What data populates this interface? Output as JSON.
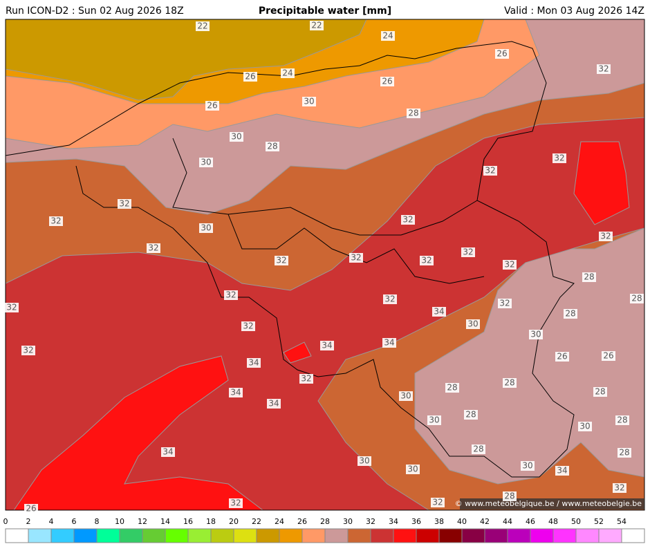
{
  "header": {
    "run": "Run ICON-D2 : Sun 02 Aug 2026 18Z",
    "title": "Precipitable water [mm]",
    "valid": "Valid : Mon 03 Aug 2026 14Z"
  },
  "copyright": "© www.meteobelgique.be / www.meteobelgie.be",
  "contour_labels": [
    22,
    22,
    24,
    26,
    32,
    26,
    24,
    26,
    30,
    26,
    28,
    30,
    28,
    30,
    32,
    32,
    32,
    32,
    30,
    32,
    32,
    32,
    32,
    32,
    32,
    32,
    32,
    28,
    32,
    32,
    32,
    28,
    32,
    34,
    28,
    32,
    30,
    30,
    34,
    34,
    32,
    26,
    26,
    34,
    32,
    28,
    28,
    34,
    34,
    30,
    28,
    28,
    30,
    28,
    30,
    34,
    28,
    28,
    30,
    30,
    30,
    34,
    32,
    28,
    32,
    32,
    26
  ],
  "colorbar": {
    "ticks": [
      0,
      2,
      4,
      6,
      8,
      10,
      12,
      14,
      16,
      18,
      20,
      22,
      24,
      26,
      28,
      30,
      32,
      34,
      36,
      38,
      40,
      42,
      44,
      46,
      48,
      50,
      52,
      54
    ],
    "colors": [
      "#ffffff",
      "#99e6ff",
      "#33ccff",
      "#0099ff",
      "#00ff99",
      "#33cc66",
      "#66cc33",
      "#66ff00",
      "#99ee33",
      "#bbcc11",
      "#dde011",
      "#cc9900",
      "#ee9900",
      "#ff9966",
      "#cc9999",
      "#cc6633",
      "#cc3333",
      "#ff1111",
      "#cc0000",
      "#880000",
      "#880044",
      "#990077",
      "#bb00bb",
      "#ee00ee",
      "#ff33ff",
      "#ff88ff",
      "#ffaaff",
      "#ffffff"
    ]
  }
}
